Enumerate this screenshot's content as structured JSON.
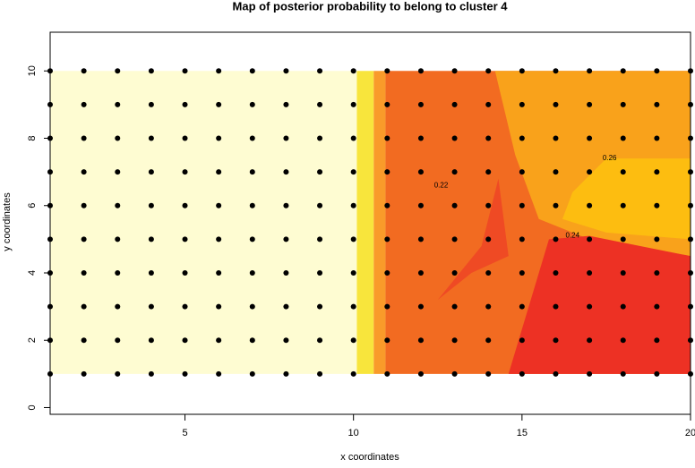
{
  "chart_data": {
    "type": "heatmap",
    "title": "Map of posterior probability to belong to cluster  4",
    "x_label": "x coordinates",
    "y_label": "y coordinates",
    "xlim": [
      1,
      20
    ],
    "ylim": [
      -0.2,
      11.15
    ],
    "xticks": [
      5,
      10,
      15,
      20
    ],
    "yticks": [
      0,
      2,
      4,
      6,
      8,
      10
    ],
    "regions": [
      {
        "color": "#fefcd2",
        "x": [
          1,
          10.1,
          10.1,
          1
        ],
        "y": [
          1,
          1,
          10,
          10
        ]
      },
      {
        "color": "#f8e53c",
        "x": [
          10.1,
          10.6,
          10.6,
          10.1
        ],
        "y": [
          1,
          1,
          10,
          10
        ]
      },
      {
        "color": "#f99b2a",
        "x": [
          10.6,
          10.95,
          10.95,
          10.6
        ],
        "y": [
          1,
          1,
          10,
          10
        ]
      },
      {
        "color": "#f26b21",
        "x": [
          10.95,
          20,
          20,
          10.95
        ],
        "y": [
          1,
          1,
          10,
          10
        ]
      },
      {
        "color": "#f9a21b",
        "x": [
          14.2,
          14.8,
          15.5,
          17,
          20,
          20
        ],
        "y": [
          10,
          7.5,
          5.6,
          5,
          4.5,
          10
        ]
      },
      {
        "color": "#fdbd10",
        "x": [
          16.2,
          17.5,
          20,
          20,
          17.5,
          16.5
        ],
        "y": [
          5.6,
          5.2,
          5,
          7.4,
          7.4,
          6.4
        ]
      },
      {
        "color": "#ed3124",
        "x": [
          14.6,
          15.8,
          17,
          20,
          20,
          14.6
        ],
        "y": [
          1,
          5,
          5.1,
          4.5,
          1,
          1
        ]
      },
      {
        "color": "#ef4a24",
        "x": [
          12.5,
          13.8,
          14.3,
          14.6,
          13.5
        ],
        "y": [
          3.2,
          4.8,
          6.8,
          4.5,
          4
        ]
      }
    ],
    "points_x": [
      1,
      2,
      3,
      4,
      5,
      6,
      7,
      8,
      9,
      10,
      11,
      12,
      13,
      14,
      15,
      16,
      17,
      18,
      19,
      20
    ],
    "points_y": [
      1,
      2,
      3,
      4,
      5,
      6,
      7,
      8,
      9,
      10
    ],
    "annotations": [
      {
        "text": "0.26",
        "x": 17.6,
        "y": 7.4
      },
      {
        "text": "0.22",
        "x": 12.6,
        "y": 6.6
      },
      {
        "text": "0.24",
        "x": 16.5,
        "y": 5.1
      }
    ]
  }
}
